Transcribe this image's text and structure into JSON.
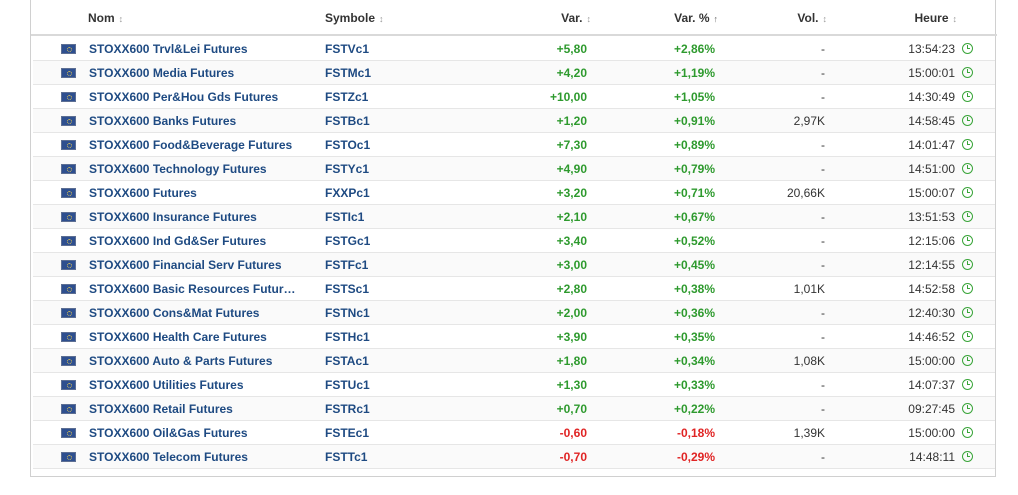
{
  "columns": {
    "name": "Nom",
    "symbol": "Symbole",
    "var": "Var.",
    "var_pct": "Var. %",
    "vol": "Vol.",
    "time": "Heure"
  },
  "sort": {
    "indicator": "↕",
    "active_column": "var_pct",
    "active_indicator": "↑"
  },
  "colors": {
    "positive": "#2e9a2e",
    "negative": "#e02424",
    "link": "#1e4a82"
  },
  "icons": {
    "flag": "eu-flag-icon",
    "status": "clock-icon"
  },
  "rows": [
    {
      "name": "STOXX600 Trvl&Lei Futures",
      "symbol": "FSTVc1",
      "var": "+5,80",
      "pct": "+2,86%",
      "vol": "-",
      "time": "13:54:23",
      "dir": "pos"
    },
    {
      "name": "STOXX600 Media Futures",
      "symbol": "FSTMc1",
      "var": "+4,20",
      "pct": "+1,19%",
      "vol": "-",
      "time": "15:00:01",
      "dir": "pos"
    },
    {
      "name": "STOXX600 Per&Hou Gds Futures",
      "symbol": "FSTZc1",
      "var": "+10,00",
      "pct": "+1,05%",
      "vol": "-",
      "time": "14:30:49",
      "dir": "pos"
    },
    {
      "name": "STOXX600 Banks Futures",
      "symbol": "FSTBc1",
      "var": "+1,20",
      "pct": "+0,91%",
      "vol": "2,97K",
      "time": "14:58:45",
      "dir": "pos"
    },
    {
      "name": "STOXX600 Food&Beverage Futures",
      "symbol": "FSTOc1",
      "var": "+7,30",
      "pct": "+0,89%",
      "vol": "-",
      "time": "14:01:47",
      "dir": "pos"
    },
    {
      "name": "STOXX600 Technology Futures",
      "symbol": "FSTYc1",
      "var": "+4,90",
      "pct": "+0,79%",
      "vol": "-",
      "time": "14:51:00",
      "dir": "pos"
    },
    {
      "name": "STOXX600 Futures",
      "symbol": "FXXPc1",
      "var": "+3,20",
      "pct": "+0,71%",
      "vol": "20,66K",
      "time": "15:00:07",
      "dir": "pos"
    },
    {
      "name": "STOXX600 Insurance Futures",
      "symbol": "FSTIc1",
      "var": "+2,10",
      "pct": "+0,67%",
      "vol": "-",
      "time": "13:51:53",
      "dir": "pos"
    },
    {
      "name": "STOXX600 Ind Gd&Ser Futures",
      "symbol": "FSTGc1",
      "var": "+3,40",
      "pct": "+0,52%",
      "vol": "-",
      "time": "12:15:06",
      "dir": "pos"
    },
    {
      "name": "STOXX600 Financial Serv Futures",
      "symbol": "FSTFc1",
      "var": "+3,00",
      "pct": "+0,45%",
      "vol": "-",
      "time": "12:14:55",
      "dir": "pos"
    },
    {
      "name": "STOXX600 Basic Resources Futur…",
      "symbol": "FSTSc1",
      "var": "+2,80",
      "pct": "+0,38%",
      "vol": "1,01K",
      "time": "14:52:58",
      "dir": "pos"
    },
    {
      "name": "STOXX600 Cons&Mat Futures",
      "symbol": "FSTNc1",
      "var": "+2,00",
      "pct": "+0,36%",
      "vol": "-",
      "time": "12:40:30",
      "dir": "pos"
    },
    {
      "name": "STOXX600 Health Care Futures",
      "symbol": "FSTHc1",
      "var": "+3,90",
      "pct": "+0,35%",
      "vol": "-",
      "time": "14:46:52",
      "dir": "pos"
    },
    {
      "name": "STOXX600 Auto & Parts Futures",
      "symbol": "FSTAc1",
      "var": "+1,80",
      "pct": "+0,34%",
      "vol": "1,08K",
      "time": "15:00:00",
      "dir": "pos"
    },
    {
      "name": "STOXX600 Utilities Futures",
      "symbol": "FSTUc1",
      "var": "+1,30",
      "pct": "+0,33%",
      "vol": "-",
      "time": "14:07:37",
      "dir": "pos"
    },
    {
      "name": "STOXX600 Retail Futures",
      "symbol": "FSTRc1",
      "var": "+0,70",
      "pct": "+0,22%",
      "vol": "-",
      "time": "09:27:45",
      "dir": "pos"
    },
    {
      "name": "STOXX600 Oil&Gas Futures",
      "symbol": "FSTEc1",
      "var": "-0,60",
      "pct": "-0,18%",
      "vol": "1,39K",
      "time": "15:00:00",
      "dir": "neg"
    },
    {
      "name": "STOXX600 Telecom Futures",
      "symbol": "FSTTc1",
      "var": "-0,70",
      "pct": "-0,29%",
      "vol": "-",
      "time": "14:48:11",
      "dir": "neg"
    }
  ]
}
